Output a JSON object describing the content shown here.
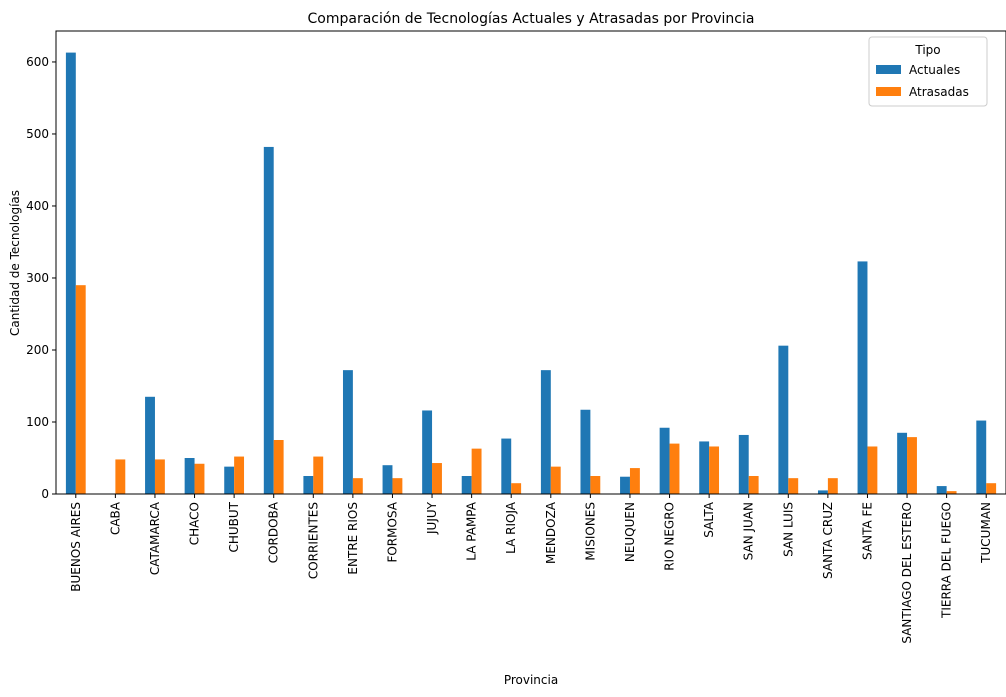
{
  "chart_data": {
    "type": "bar",
    "title": "Comparación de Tecnologías Actuales y Atrasadas por Provincia",
    "xlabel": "Provincia",
    "ylabel": "Cantidad de Tecnologías",
    "ylim": [
      0,
      643
    ],
    "yticks": [
      0,
      100,
      200,
      300,
      400,
      500,
      600
    ],
    "grid": false,
    "legend": {
      "title": "Tipo",
      "placement": "top-right"
    },
    "categories": [
      "BUENOS AIRES",
      "CABA",
      "CATAMARCA",
      "CHACO",
      "CHUBUT",
      "CORDOBA",
      "CORRIENTES",
      "ENTRE RIOS",
      "FORMOSA",
      "JUJUY",
      "LA PAMPA",
      "LA RIOJA",
      "MENDOZA",
      "MISIONES",
      "NEUQUEN",
      "RIO NEGRO",
      "SALTA",
      "SAN JUAN",
      "SAN LUIS",
      "SANTA CRUZ",
      "SANTA FE",
      "SANTIAGO DEL ESTERO",
      "TIERRA DEL FUEGO",
      "TUCUMAN"
    ],
    "series": [
      {
        "name": "Actuales",
        "color": "#1f77b4",
        "values": [
          613,
          0,
          135,
          50,
          38,
          482,
          25,
          172,
          40,
          116,
          25,
          77,
          172,
          117,
          24,
          92,
          73,
          82,
          206,
          5,
          323,
          85,
          11,
          102
        ]
      },
      {
        "name": "Atrasadas",
        "color": "#ff7f0e",
        "values": [
          290,
          48,
          48,
          42,
          52,
          75,
          52,
          22,
          22,
          43,
          63,
          15,
          38,
          25,
          36,
          70,
          66,
          25,
          22,
          22,
          66,
          79,
          4,
          15
        ]
      }
    ]
  }
}
